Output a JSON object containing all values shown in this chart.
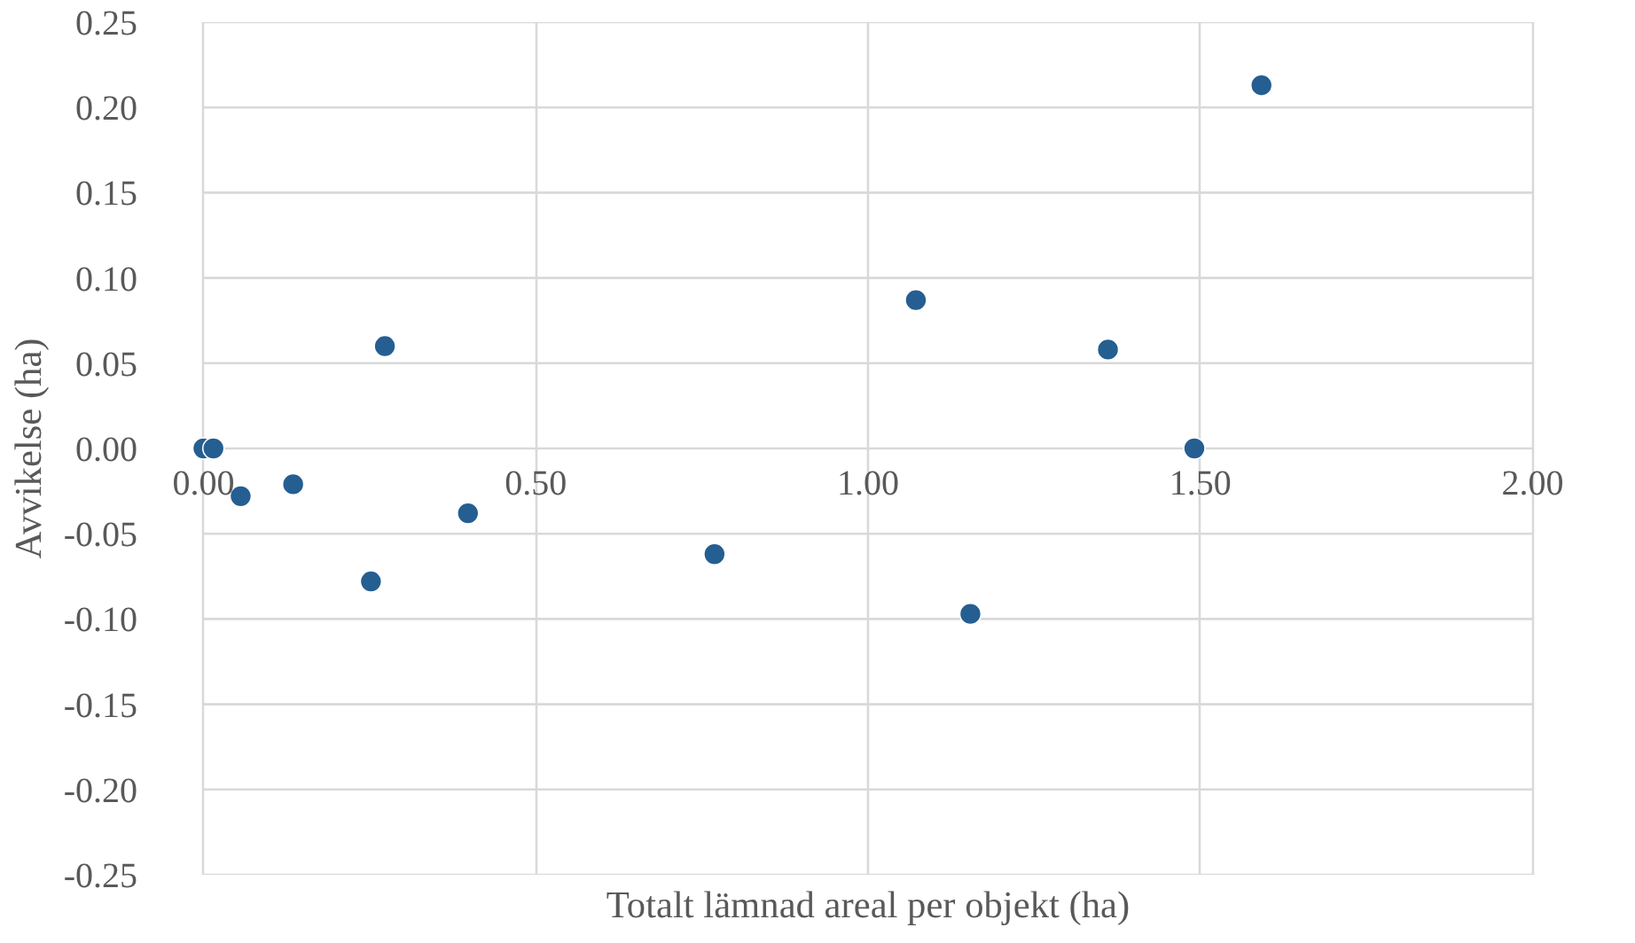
{
  "chart_data": {
    "type": "scatter",
    "xlabel": "Totalt lämnad areal per objekt (ha)",
    "ylabel": "Avvikelse (ha)",
    "x": [
      0.0,
      0.015,
      0.056,
      0.135,
      0.252,
      0.273,
      0.398,
      0.769,
      1.072,
      1.154,
      1.361,
      1.491,
      1.592
    ],
    "series": [
      {
        "color": "#255e91",
        "values": [
          0.0,
          0.0,
          -0.028,
          -0.021,
          -0.078,
          0.06,
          -0.038,
          -0.062,
          0.087,
          -0.097,
          0.058,
          0.0,
          0.213
        ]
      }
    ],
    "xlim": [
      0,
      2
    ],
    "ylim": [
      -0.25,
      0.25
    ],
    "xticks": [
      {
        "value": 0,
        "label": "0.00"
      },
      {
        "value": 0.5,
        "label": "0.50"
      },
      {
        "value": 1,
        "label": "1.00"
      },
      {
        "value": 1.5,
        "label": "1.50"
      },
      {
        "value": 2,
        "label": "2.00"
      }
    ],
    "yticks": [
      {
        "value": -0.25,
        "label": "-0.25"
      },
      {
        "value": -0.2,
        "label": "-0.20"
      },
      {
        "value": -0.15,
        "label": "-0.15"
      },
      {
        "value": -0.1,
        "label": "-0.10"
      },
      {
        "value": -0.05,
        "label": "-0.05"
      },
      {
        "value": 0,
        "label": "0.00"
      },
      {
        "value": 0.05,
        "label": "0.05"
      },
      {
        "value": 0.1,
        "label": "0.10"
      },
      {
        "value": 0.15,
        "label": "0.15"
      },
      {
        "value": 0.2,
        "label": "0.20"
      },
      {
        "value": 0.25,
        "label": "0.25"
      }
    ],
    "grid": true,
    "marker": "circle"
  }
}
